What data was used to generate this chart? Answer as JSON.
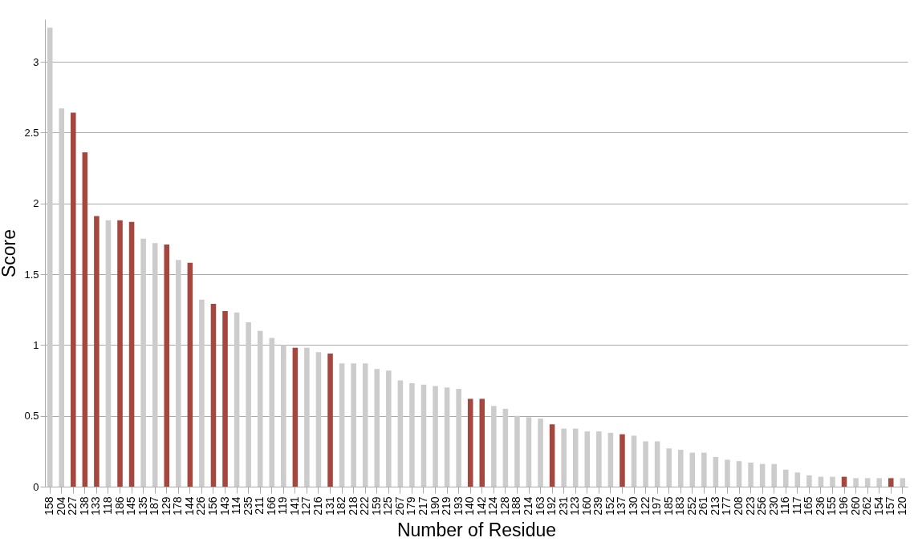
{
  "chart_data": {
    "type": "bar",
    "xlabel": "Number of Residue",
    "ylabel": "Score",
    "categories": [
      "158",
      "204",
      "227",
      "138",
      "133",
      "118",
      "186",
      "145",
      "135",
      "187",
      "129",
      "178",
      "144",
      "226",
      "156",
      "143",
      "114",
      "235",
      "211",
      "166",
      "119",
      "141",
      "127",
      "216",
      "131",
      "182",
      "218",
      "222",
      "159",
      "125",
      "267",
      "179",
      "217",
      "190",
      "219",
      "193",
      "140",
      "142",
      "124",
      "128",
      "188",
      "214",
      "163",
      "192",
      "231",
      "123",
      "160",
      "239",
      "152",
      "137",
      "130",
      "122",
      "197",
      "185",
      "183",
      "252",
      "261",
      "213",
      "177",
      "208",
      "223",
      "256",
      "230",
      "116",
      "117",
      "165",
      "236",
      "155",
      "196",
      "260",
      "262",
      "154",
      "157",
      "120"
    ],
    "values": [
      3.24,
      2.67,
      2.64,
      2.36,
      1.91,
      1.88,
      1.88,
      1.87,
      1.75,
      1.72,
      1.71,
      1.6,
      1.58,
      1.32,
      1.29,
      1.24,
      1.23,
      1.16,
      1.1,
      1.05,
      1.0,
      0.98,
      0.98,
      0.95,
      0.94,
      0.87,
      0.87,
      0.87,
      0.83,
      0.82,
      0.75,
      0.73,
      0.72,
      0.71,
      0.7,
      0.69,
      0.62,
      0.62,
      0.57,
      0.55,
      0.5,
      0.49,
      0.48,
      0.44,
      0.41,
      0.41,
      0.39,
      0.39,
      0.38,
      0.37,
      0.36,
      0.32,
      0.32,
      0.27,
      0.26,
      0.24,
      0.24,
      0.21,
      0.19,
      0.18,
      0.17,
      0.16,
      0.16,
      0.12,
      0.1,
      0.08,
      0.07,
      0.07,
      0.07,
      0.06,
      0.06,
      0.06,
      0.06,
      0.06
    ],
    "colors": [
      "#cccccc",
      "#cccccc",
      "#a5463f",
      "#a5463f",
      "#a5463f",
      "#cccccc",
      "#a5463f",
      "#a5463f",
      "#cccccc",
      "#cccccc",
      "#a5463f",
      "#cccccc",
      "#a5463f",
      "#cccccc",
      "#a5463f",
      "#a5463f",
      "#cccccc",
      "#cccccc",
      "#cccccc",
      "#cccccc",
      "#cccccc",
      "#a5463f",
      "#cccccc",
      "#cccccc",
      "#a5463f",
      "#cccccc",
      "#cccccc",
      "#cccccc",
      "#cccccc",
      "#cccccc",
      "#cccccc",
      "#cccccc",
      "#cccccc",
      "#cccccc",
      "#cccccc",
      "#cccccc",
      "#a5463f",
      "#a5463f",
      "#cccccc",
      "#cccccc",
      "#cccccc",
      "#cccccc",
      "#cccccc",
      "#a5463f",
      "#cccccc",
      "#cccccc",
      "#cccccc",
      "#cccccc",
      "#cccccc",
      "#a5463f",
      "#cccccc",
      "#cccccc",
      "#cccccc",
      "#cccccc",
      "#cccccc",
      "#cccccc",
      "#cccccc",
      "#cccccc",
      "#cccccc",
      "#cccccc",
      "#cccccc",
      "#cccccc",
      "#cccccc",
      "#cccccc",
      "#cccccc",
      "#cccccc",
      "#cccccc",
      "#cccccc",
      "#a5463f",
      "#cccccc",
      "#cccccc",
      "#cccccc",
      "#a5463f",
      "#cccccc"
    ],
    "ylim": [
      0,
      3.3
    ],
    "yticks": [
      0,
      0.5,
      1,
      1.5,
      2,
      2.5,
      3
    ],
    "grid": "y"
  }
}
